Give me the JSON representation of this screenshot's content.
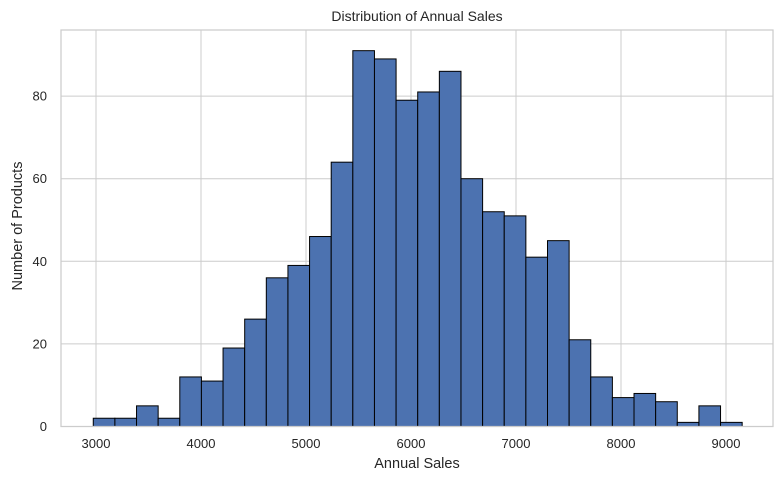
{
  "chart_data": {
    "type": "bar",
    "subtype": "histogram",
    "title": "Distribution of Annual Sales",
    "xlabel": "Annual Sales",
    "ylabel": "Number of Products",
    "bin_start": 2974,
    "bin_width": 206,
    "num_bins": 30,
    "bin_edges": [
      2974,
      3180,
      3386,
      3592,
      3798,
      4004,
      4210,
      4416,
      4622,
      4828,
      5034,
      5240,
      5446,
      5652,
      5858,
      6064,
      6270,
      6476,
      6682,
      6888,
      7094,
      7300,
      7506,
      7712,
      7918,
      8124,
      8330,
      8536,
      8742,
      8948,
      9154
    ],
    "values": [
      2,
      2,
      5,
      2,
      12,
      11,
      19,
      26,
      36,
      39,
      46,
      64,
      91,
      89,
      79,
      81,
      86,
      60,
      52,
      51,
      41,
      45,
      21,
      12,
      7,
      8,
      6,
      1,
      5,
      1
    ],
    "xlim": [
      2700,
      9500
    ],
    "ylim": [
      0,
      96
    ],
    "xticks": [
      3000,
      4000,
      5000,
      6000,
      7000,
      8000,
      9000
    ],
    "xtick_labels": [
      "3000",
      "4000",
      "5000",
      "6000",
      "7000",
      "8000",
      "9000"
    ],
    "yticks": [
      0,
      20,
      40,
      60,
      80
    ],
    "ytick_labels": [
      "0",
      "20",
      "40",
      "60",
      "80"
    ],
    "grid": true,
    "legend": null,
    "colors": {
      "bar_fill": "#4c72b0",
      "bar_edge": "#000000",
      "grid": "#cccccc",
      "spine": "#cccccc",
      "text": "#262626"
    }
  }
}
